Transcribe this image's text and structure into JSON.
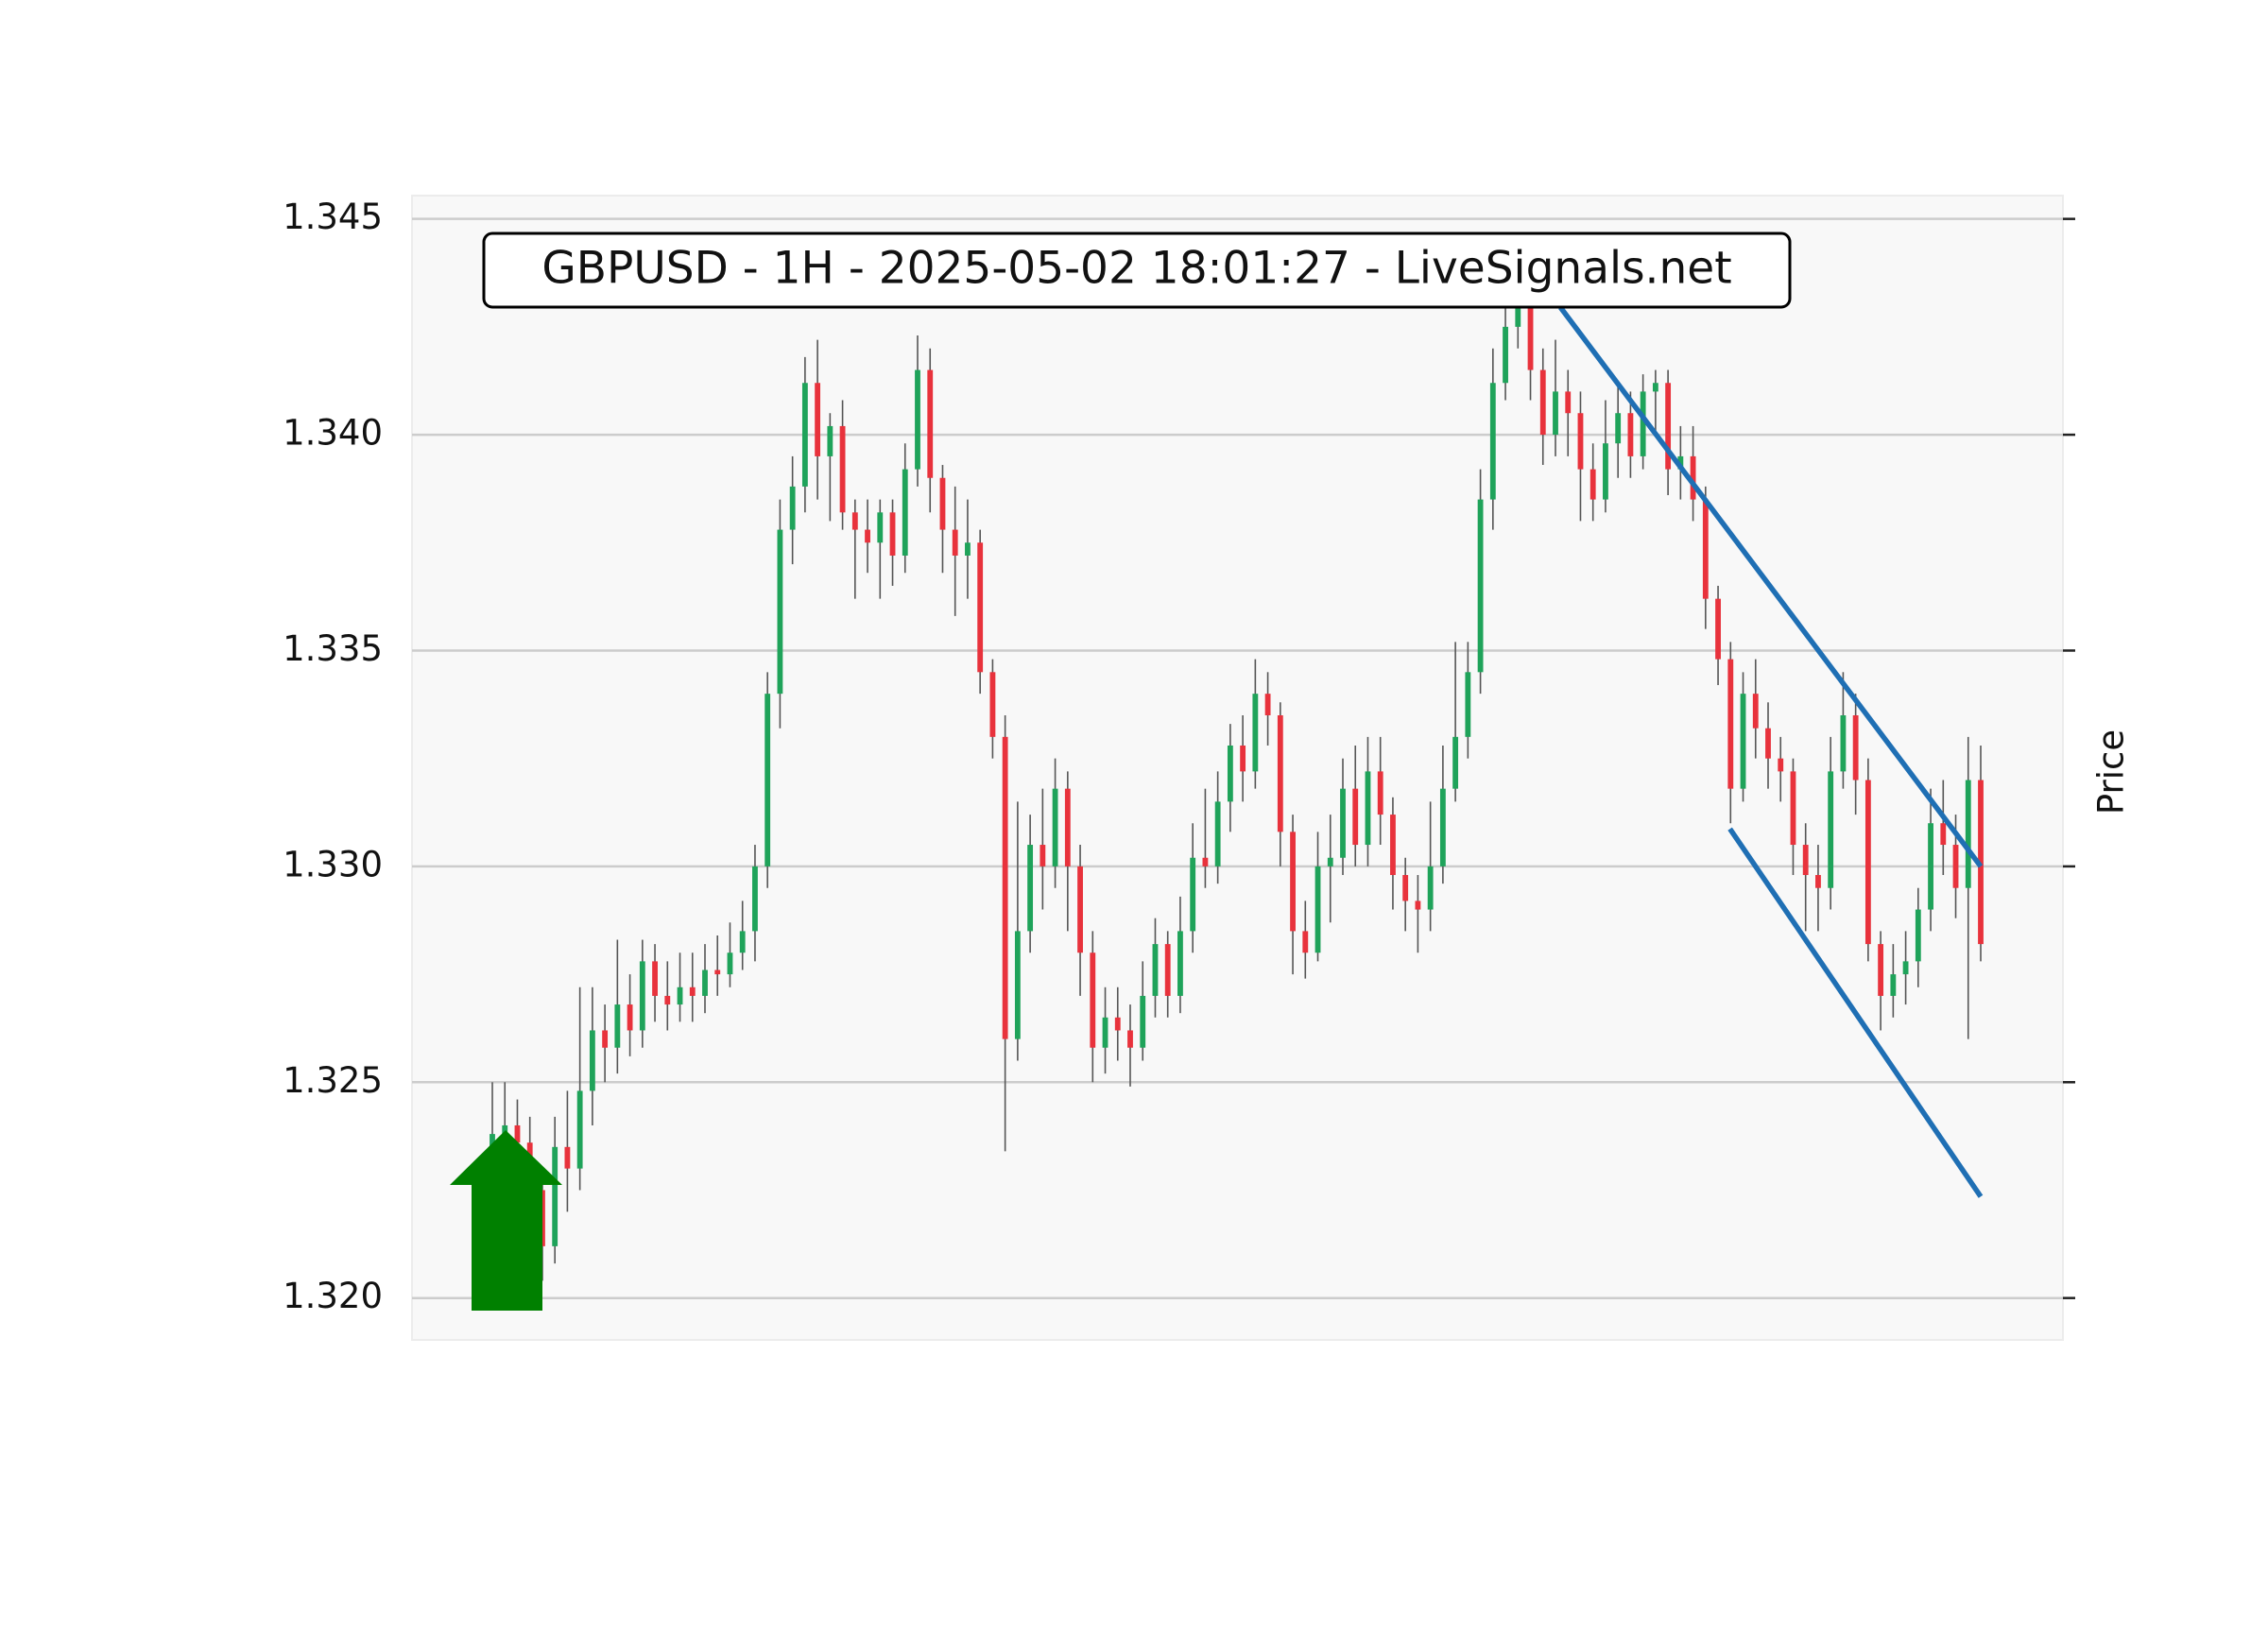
{
  "chart_data": {
    "type": "candlestick",
    "title": "GBPUSD - 1H - 2025-05-02 18:01:27 - LiveSignals.net",
    "y_label": "Price",
    "ylim": [
      1.31903,
      1.34554
    ],
    "yticks": [
      {
        "value": 1.32,
        "label": "1.320"
      },
      1.325,
      {
        "value": 1.33,
        "label": "1.330"
      },
      1.335,
      {
        "value": 1.34,
        "label": "1.340"
      },
      1.345
    ],
    "grid": true,
    "up_color": "#1fa35a",
    "down_color": "#e8323c",
    "wick_color": "#555555",
    "open": [
      1.3232,
      1.3238,
      1.324,
      1.3236,
      1.3225,
      1.3212,
      1.3235,
      1.323,
      1.3248,
      1.3262,
      1.3258,
      1.3268,
      1.3262,
      1.3278,
      1.327,
      1.3268,
      1.3272,
      1.327,
      1.3276,
      1.3275,
      1.328,
      1.3285,
      1.33,
      1.334,
      1.3378,
      1.3388,
      1.3412,
      1.3395,
      1.3402,
      1.3382,
      1.3378,
      1.3375,
      1.3382,
      1.3372,
      1.3392,
      1.3415,
      1.339,
      1.3378,
      1.3372,
      1.3375,
      1.3345,
      1.333,
      1.326,
      1.3285,
      1.3305,
      1.33,
      1.3318,
      1.33,
      1.328,
      1.3258,
      1.3265,
      1.3262,
      1.3258,
      1.327,
      1.3282,
      1.327,
      1.3285,
      1.3302,
      1.33,
      1.3315,
      1.3328,
      1.3322,
      1.334,
      1.3335,
      1.3308,
      1.3285,
      1.328,
      1.33,
      1.3302,
      1.3318,
      1.3305,
      1.3322,
      1.3312,
      1.3298,
      1.3292,
      1.329,
      1.33,
      1.3318,
      1.333,
      1.3345,
      1.3385,
      1.3412,
      1.3425,
      1.343,
      1.3415,
      1.34,
      1.341,
      1.3405,
      1.3392,
      1.3385,
      1.3398,
      1.3405,
      1.3395,
      1.341,
      1.3412,
      1.3392,
      1.3395,
      1.3385,
      1.3362,
      1.3348,
      1.3318,
      1.334,
      1.3332,
      1.3325,
      1.3322,
      1.3305,
      1.3298,
      1.3295,
      1.3322,
      1.3335,
      1.332,
      1.3282,
      1.327,
      1.3275,
      1.3278,
      1.329,
      1.331,
      1.3305,
      1.3295,
      1.332
    ],
    "high": [
      1.325,
      1.325,
      1.3246,
      1.3242,
      1.323,
      1.3242,
      1.3248,
      1.3272,
      1.3272,
      1.3268,
      1.3283,
      1.3275,
      1.3283,
      1.3282,
      1.3278,
      1.328,
      1.328,
      1.3282,
      1.3284,
      1.3287,
      1.3292,
      1.3305,
      1.3345,
      1.3385,
      1.3395,
      1.3418,
      1.3422,
      1.3405,
      1.3408,
      1.3385,
      1.3385,
      1.3385,
      1.3385,
      1.3398,
      1.3423,
      1.342,
      1.3393,
      1.3388,
      1.3385,
      1.3378,
      1.3348,
      1.3335,
      1.3315,
      1.3312,
      1.3318,
      1.3325,
      1.3322,
      1.3305,
      1.3285,
      1.3272,
      1.3272,
      1.3268,
      1.3278,
      1.3288,
      1.3285,
      1.3293,
      1.331,
      1.3318,
      1.3322,
      1.3333,
      1.3335,
      1.3348,
      1.3345,
      1.3338,
      1.3312,
      1.3292,
      1.3308,
      1.3312,
      1.3325,
      1.3328,
      1.333,
      1.333,
      1.3316,
      1.3302,
      1.3298,
      1.3315,
      1.3328,
      1.3352,
      1.3352,
      1.3392,
      1.342,
      1.3432,
      1.3436,
      1.3436,
      1.342,
      1.3422,
      1.3415,
      1.341,
      1.3398,
      1.3408,
      1.3412,
      1.341,
      1.3414,
      1.3415,
      1.3415,
      1.3402,
      1.3402,
      1.3388,
      1.3365,
      1.3352,
      1.3345,
      1.3348,
      1.3338,
      1.333,
      1.3325,
      1.331,
      1.3305,
      1.333,
      1.3345,
      1.334,
      1.3325,
      1.3285,
      1.3282,
      1.3285,
      1.3295,
      1.3318,
      1.332,
      1.3312,
      1.333,
      1.3328
    ],
    "low": [
      1.3226,
      1.323,
      1.3228,
      1.3218,
      1.3204,
      1.3208,
      1.322,
      1.3225,
      1.324,
      1.325,
      1.3252,
      1.3256,
      1.3258,
      1.3264,
      1.3262,
      1.3264,
      1.3264,
      1.3266,
      1.327,
      1.3272,
      1.3276,
      1.3278,
      1.3295,
      1.3332,
      1.337,
      1.3382,
      1.3385,
      1.338,
      1.3378,
      1.3362,
      1.3368,
      1.3362,
      1.3365,
      1.3368,
      1.3388,
      1.3382,
      1.3368,
      1.3358,
      1.3362,
      1.334,
      1.3325,
      1.3234,
      1.3255,
      1.328,
      1.329,
      1.3295,
      1.3285,
      1.327,
      1.325,
      1.3252,
      1.3255,
      1.3249,
      1.3255,
      1.3265,
      1.3265,
      1.3266,
      1.328,
      1.3295,
      1.3296,
      1.3308,
      1.3315,
      1.3318,
      1.3328,
      1.33,
      1.3275,
      1.3274,
      1.3278,
      1.3287,
      1.3298,
      1.33,
      1.33,
      1.3305,
      1.329,
      1.3285,
      1.328,
      1.3285,
      1.3296,
      1.3315,
      1.3325,
      1.334,
      1.3378,
      1.3408,
      1.342,
      1.3408,
      1.3393,
      1.3395,
      1.3395,
      1.338,
      1.338,
      1.3382,
      1.339,
      1.339,
      1.3392,
      1.34,
      1.3386,
      1.3385,
      1.338,
      1.3355,
      1.3342,
      1.331,
      1.3315,
      1.3325,
      1.3318,
      1.3315,
      1.3298,
      1.3285,
      1.3285,
      1.329,
      1.3318,
      1.3312,
      1.3278,
      1.3262,
      1.3265,
      1.3268,
      1.3272,
      1.3285,
      1.3298,
      1.3288,
      1.326,
      1.3278
    ],
    "close": [
      1.3238,
      1.324,
      1.3236,
      1.3225,
      1.3212,
      1.3235,
      1.323,
      1.3248,
      1.3262,
      1.3258,
      1.3268,
      1.3262,
      1.3278,
      1.327,
      1.3268,
      1.3272,
      1.327,
      1.3276,
      1.3275,
      1.328,
      1.3285,
      1.33,
      1.334,
      1.3378,
      1.3388,
      1.3412,
      1.3395,
      1.3402,
      1.3382,
      1.3378,
      1.3375,
      1.3382,
      1.3372,
      1.3392,
      1.3415,
      1.339,
      1.3378,
      1.3372,
      1.3375,
      1.3345,
      1.333,
      1.326,
      1.3285,
      1.3305,
      1.33,
      1.3318,
      1.33,
      1.328,
      1.3258,
      1.3265,
      1.3262,
      1.3258,
      1.327,
      1.3282,
      1.327,
      1.3285,
      1.3302,
      1.33,
      1.3315,
      1.3328,
      1.3322,
      1.334,
      1.3335,
      1.3308,
      1.3285,
      1.328,
      1.33,
      1.3302,
      1.3318,
      1.3305,
      1.3322,
      1.3312,
      1.3298,
      1.3292,
      1.329,
      1.33,
      1.3318,
      1.333,
      1.3345,
      1.3385,
      1.3412,
      1.3425,
      1.343,
      1.3415,
      1.34,
      1.341,
      1.3405,
      1.3392,
      1.3385,
      1.3398,
      1.3405,
      1.3395,
      1.341,
      1.3412,
      1.3392,
      1.3395,
      1.3385,
      1.3362,
      1.3348,
      1.3318,
      1.334,
      1.3332,
      1.3325,
      1.3322,
      1.3305,
      1.3298,
      1.3295,
      1.3322,
      1.3335,
      1.332,
      1.3282,
      1.327,
      1.3275,
      1.3278,
      1.329,
      1.331,
      1.3305,
      1.3295,
      1.332,
      1.3282
    ],
    "trendline_color": "#1f6fb4",
    "trendlines": [
      {
        "x": [
          85.4,
          119
        ],
        "y": [
          1.34295,
          1.33
        ]
      },
      {
        "x": [
          98.95,
          119
        ],
        "y": [
          1.33087,
          1.32235
        ]
      }
    ]
  }
}
